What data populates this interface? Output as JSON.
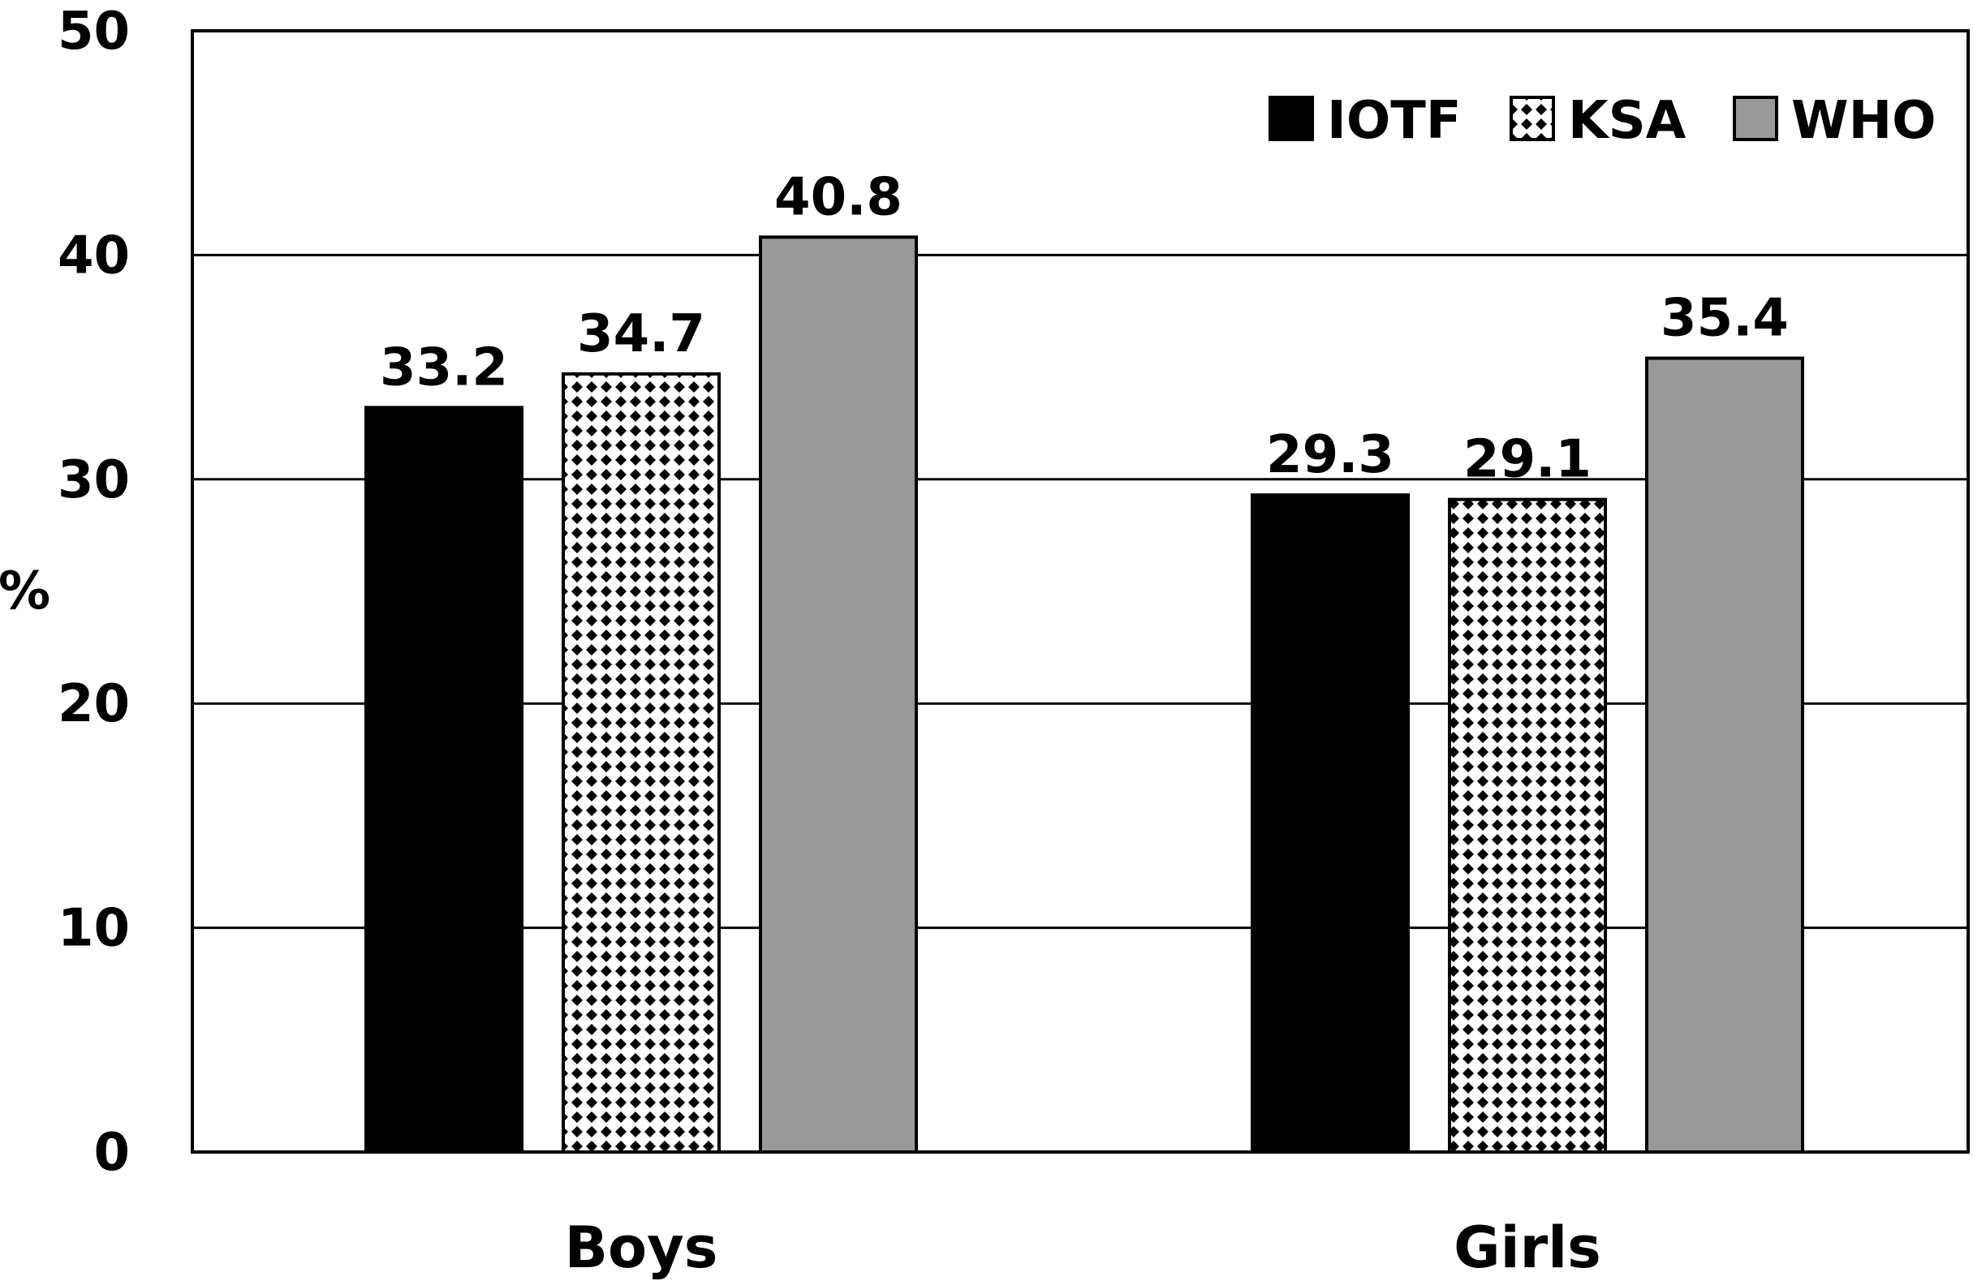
{
  "chart_data": {
    "type": "bar",
    "categories": [
      "Boys",
      "Girls"
    ],
    "series": [
      {
        "name": "IOTF",
        "values": [
          33.2,
          29.3
        ],
        "color": "#000000",
        "pattern": "solid"
      },
      {
        "name": "KSA",
        "values": [
          34.7,
          29.1
        ],
        "color": "#ffffff",
        "pattern": "dots"
      },
      {
        "name": "WHO",
        "values": [
          40.8,
          35.4
        ],
        "color": "#999999",
        "pattern": "solid"
      }
    ],
    "ylabel": "%",
    "ylim": [
      0,
      50
    ],
    "yticks": [
      0,
      10,
      20,
      30,
      40,
      50
    ],
    "grid": true,
    "legend": "top-right",
    "data_labels": true
  }
}
